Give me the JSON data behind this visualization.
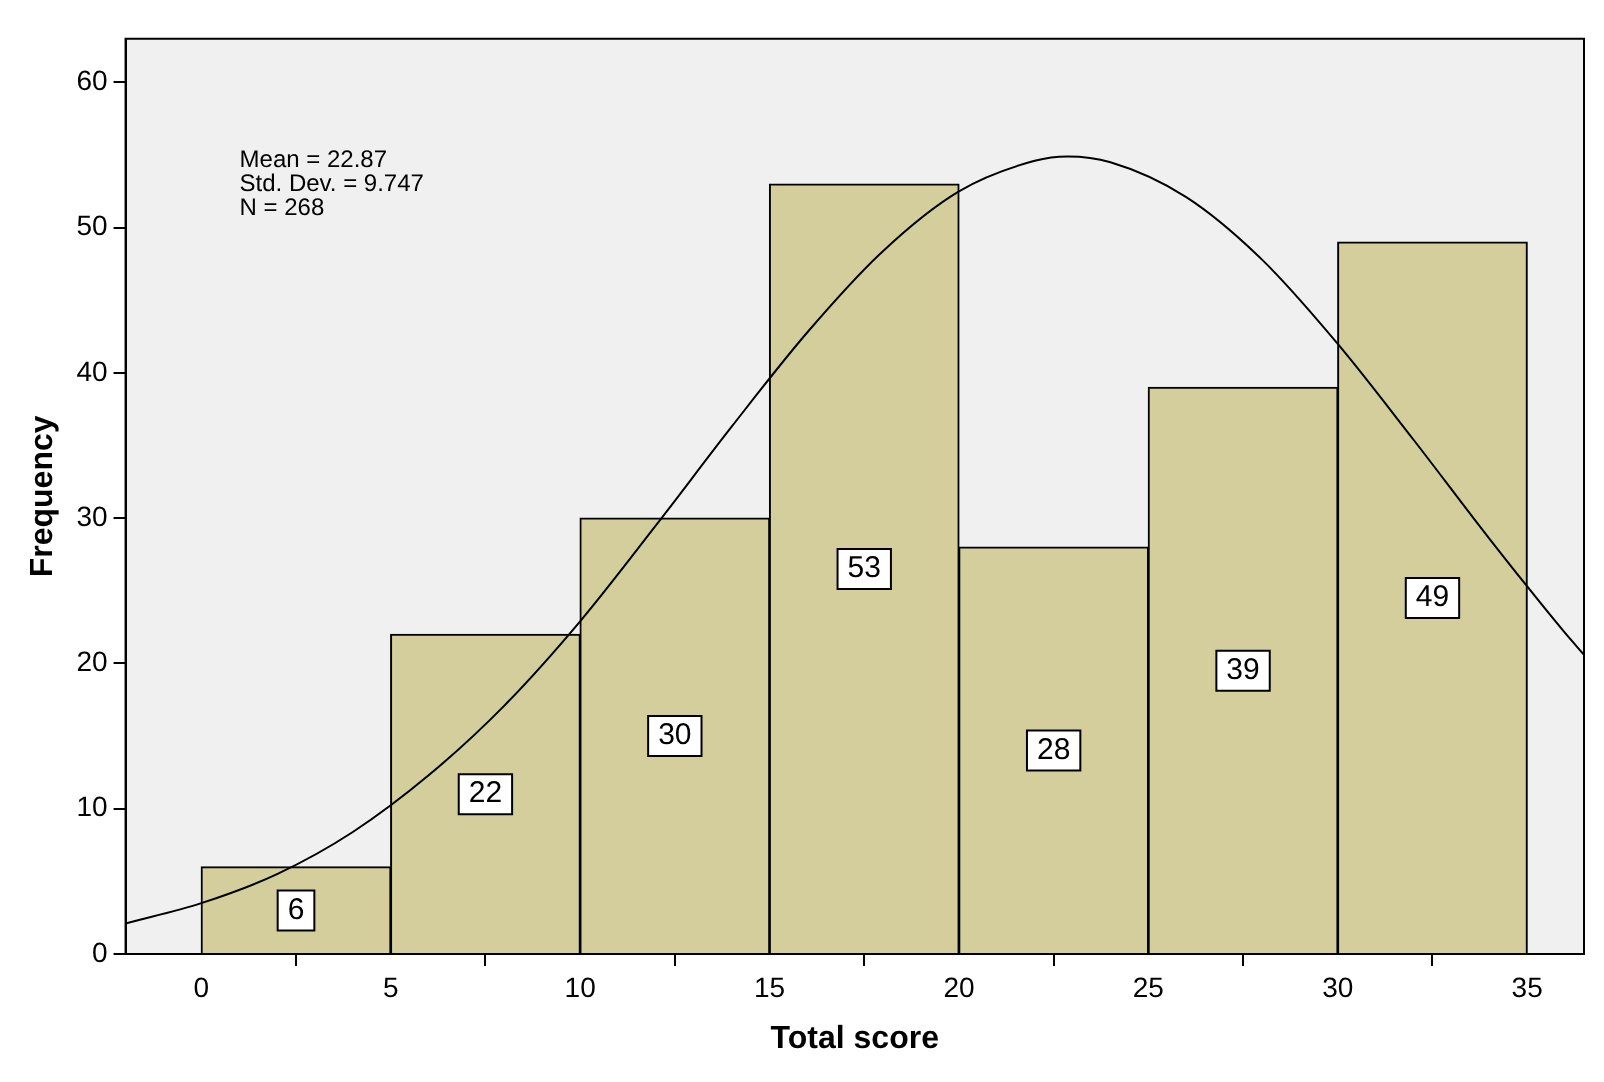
{
  "chart_data": {
    "type": "histogram",
    "xlabel": "Total score",
    "ylabel": "Frequency",
    "bins": [
      0,
      5,
      10,
      15,
      20,
      25,
      30,
      35
    ],
    "series": [
      {
        "color": "#d3ce9c",
        "values": [
          6,
          22,
          30,
          53,
          28,
          39,
          49
        ],
        "value_labels": [
          "6",
          "22",
          "30",
          "53",
          "28",
          "39",
          "49"
        ]
      },
      {
        "type": "line",
        "color": "#000000",
        "x": [
          -2,
          0,
          2,
          4,
          6,
          8,
          10,
          12,
          14,
          16,
          18,
          20,
          22,
          22.87,
          24,
          26,
          28,
          30,
          32,
          34,
          36,
          36.5
        ],
        "values": [
          2.1,
          3.5,
          5.5,
          8.4,
          12.3,
          17.1,
          22.9,
          29.5,
          36.3,
          42.8,
          48.4,
          52.5,
          54.6,
          54.9,
          54.5,
          52.1,
          47.8,
          42.0,
          35.4,
          28.6,
          22.1,
          20.6
        ]
      }
    ],
    "xlim": [
      -2,
      36.5
    ],
    "xticks": [
      0,
      5,
      10,
      15,
      20,
      25,
      30,
      35
    ],
    "ylim": [
      0,
      63
    ],
    "yticks": [
      0,
      10,
      20,
      30,
      40,
      50,
      60
    ],
    "annotations": [
      "Mean = 22.87",
      "Std. Dev. = 9.747",
      "N = 268"
    ],
    "grid": false,
    "legend": false,
    "marker": "none"
  }
}
